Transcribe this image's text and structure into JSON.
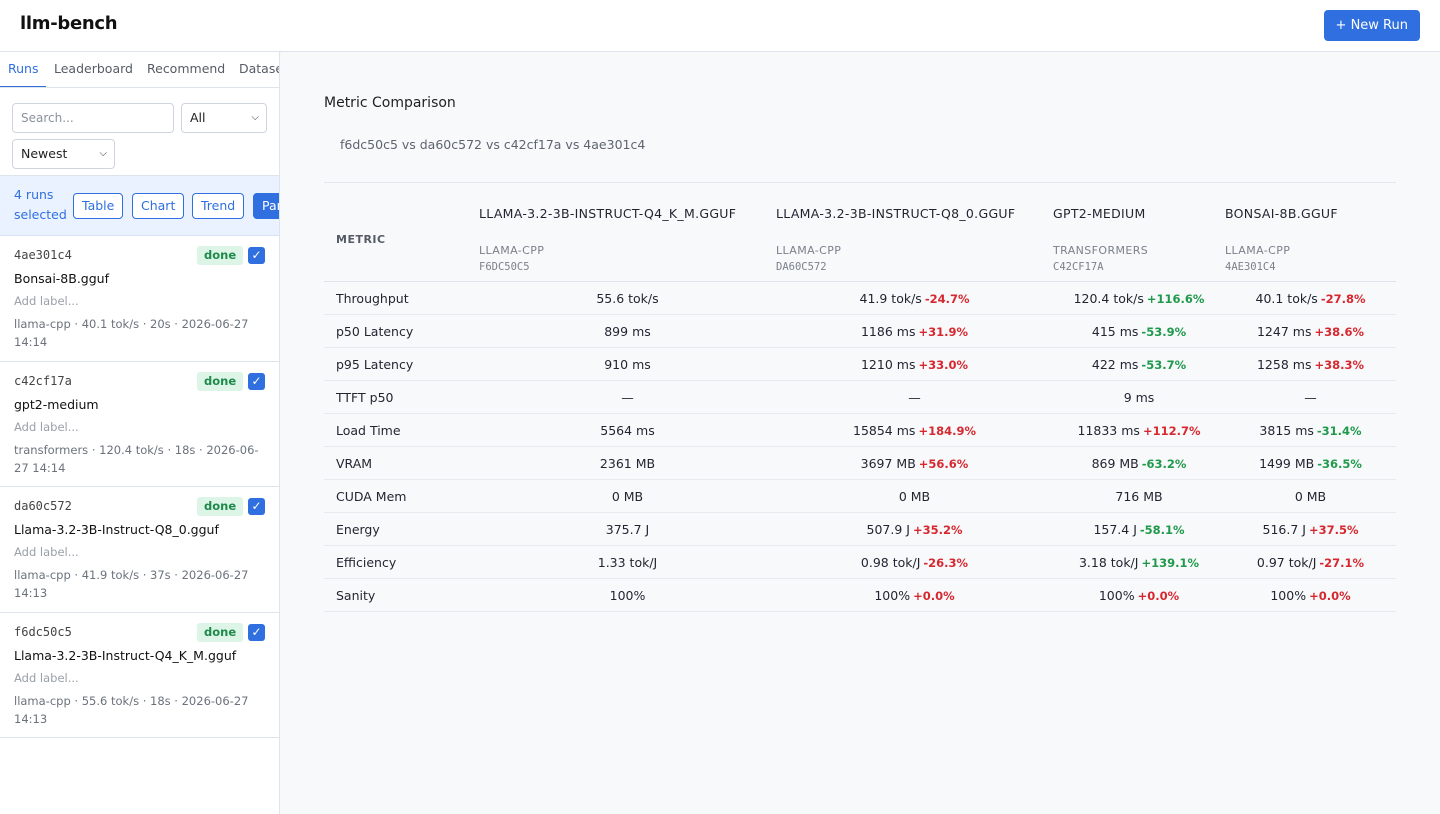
{
  "app": {
    "title": "llm-bench",
    "new_run_label": "+ New Run"
  },
  "sidebar": {
    "tabs": [
      {
        "label": "Runs",
        "active": true
      },
      {
        "label": "Leaderboard",
        "active": false
      },
      {
        "label": "Recommend",
        "active": false
      },
      {
        "label": "Datasets",
        "active": false
      }
    ],
    "search_placeholder": "Search...",
    "status_filter": "All",
    "sort": "Newest",
    "selection": {
      "count_text": "4 runs selected",
      "buttons": [
        "Table",
        "Chart",
        "Trend",
        "Pareto"
      ]
    },
    "runs": [
      {
        "id": "4ae301c4",
        "status": "done",
        "checked": true,
        "model": "Bonsai-8B.gguf",
        "label_placeholder": "Add label...",
        "meta": "llama-cpp · 40.1 tok/s · 20s · 2026-06-27 14:14"
      },
      {
        "id": "c42cf17a",
        "status": "done",
        "checked": true,
        "model": "gpt2-medium",
        "label_placeholder": "Add label...",
        "meta": "transformers · 120.4 tok/s · 18s · 2026-06-27 14:14"
      },
      {
        "id": "da60c572",
        "status": "done",
        "checked": true,
        "model": "Llama-3.2-3B-Instruct-Q8_0.gguf",
        "label_placeholder": "Add label...",
        "meta": "llama-cpp · 41.9 tok/s · 37s · 2026-06-27 14:13"
      },
      {
        "id": "f6dc50c5",
        "status": "done",
        "checked": true,
        "model": "Llama-3.2-3B-Instruct-Q4_K_M.gguf",
        "label_placeholder": "Add label...",
        "meta": "llama-cpp · 55.6 tok/s · 18s · 2026-06-27 14:13"
      }
    ]
  },
  "comparison": {
    "title": "Metric Comparison",
    "subtitle": "f6dc50c5 vs da60c572 vs c42cf17a vs 4ae301c4",
    "metric_header": "METRIC",
    "columns": [
      {
        "name": "LLAMA-3.2-3B-INSTRUCT-Q4_K_M.GGUF",
        "backend": "LLAMA-CPP",
        "id": "F6DC50C5"
      },
      {
        "name": "LLAMA-3.2-3B-INSTRUCT-Q8_0.GGUF",
        "backend": "LLAMA-CPP",
        "id": "DA60C572"
      },
      {
        "name": "GPT2-MEDIUM",
        "backend": "TRANSFORMERS",
        "id": "C42CF17A"
      },
      {
        "name": "BONSAI-8B.GGUF",
        "backend": "LLAMA-CPP",
        "id": "4AE301C4"
      }
    ],
    "rows": [
      {
        "metric": "Throughput",
        "cells": [
          {
            "value": "55.6 tok/s",
            "delta": "",
            "good": null
          },
          {
            "value": "41.9 tok/s",
            "delta": "-24.7%",
            "good": false
          },
          {
            "value": "120.4 tok/s",
            "delta": "+116.6%",
            "good": true
          },
          {
            "value": "40.1 tok/s",
            "delta": "-27.8%",
            "good": false
          }
        ]
      },
      {
        "metric": "p50 Latency",
        "cells": [
          {
            "value": "899 ms",
            "delta": "",
            "good": null
          },
          {
            "value": "1186 ms",
            "delta": "+31.9%",
            "good": false
          },
          {
            "value": "415 ms",
            "delta": "-53.9%",
            "good": true
          },
          {
            "value": "1247 ms",
            "delta": "+38.6%",
            "good": false
          }
        ]
      },
      {
        "metric": "p95 Latency",
        "cells": [
          {
            "value": "910 ms",
            "delta": "",
            "good": null
          },
          {
            "value": "1210 ms",
            "delta": "+33.0%",
            "good": false
          },
          {
            "value": "422 ms",
            "delta": "-53.7%",
            "good": true
          },
          {
            "value": "1258 ms",
            "delta": "+38.3%",
            "good": false
          }
        ]
      },
      {
        "metric": "TTFT p50",
        "cells": [
          {
            "value": "—",
            "delta": "",
            "good": null
          },
          {
            "value": "—",
            "delta": "",
            "good": null
          },
          {
            "value": "9 ms",
            "delta": "",
            "good": null
          },
          {
            "value": "—",
            "delta": "",
            "good": null
          }
        ]
      },
      {
        "metric": "Load Time",
        "cells": [
          {
            "value": "5564 ms",
            "delta": "",
            "good": null
          },
          {
            "value": "15854 ms",
            "delta": "+184.9%",
            "good": false
          },
          {
            "value": "11833 ms",
            "delta": "+112.7%",
            "good": false
          },
          {
            "value": "3815 ms",
            "delta": "-31.4%",
            "good": true
          }
        ]
      },
      {
        "metric": "VRAM",
        "cells": [
          {
            "value": "2361 MB",
            "delta": "",
            "good": null
          },
          {
            "value": "3697 MB",
            "delta": "+56.6%",
            "good": false
          },
          {
            "value": "869 MB",
            "delta": "-63.2%",
            "good": true
          },
          {
            "value": "1499 MB",
            "delta": "-36.5%",
            "good": true
          }
        ]
      },
      {
        "metric": "CUDA Mem",
        "cells": [
          {
            "value": "0 MB",
            "delta": "",
            "good": null
          },
          {
            "value": "0 MB",
            "delta": "",
            "good": null
          },
          {
            "value": "716 MB",
            "delta": "",
            "good": null
          },
          {
            "value": "0 MB",
            "delta": "",
            "good": null
          }
        ]
      },
      {
        "metric": "Energy",
        "cells": [
          {
            "value": "375.7 J",
            "delta": "",
            "good": null
          },
          {
            "value": "507.9 J",
            "delta": "+35.2%",
            "good": false
          },
          {
            "value": "157.4 J",
            "delta": "-58.1%",
            "good": true
          },
          {
            "value": "516.7 J",
            "delta": "+37.5%",
            "good": false
          }
        ]
      },
      {
        "metric": "Efficiency",
        "cells": [
          {
            "value": "1.33 tok/J",
            "delta": "",
            "good": null
          },
          {
            "value": "0.98 tok/J",
            "delta": "-26.3%",
            "good": false
          },
          {
            "value": "3.18 tok/J",
            "delta": "+139.1%",
            "good": true
          },
          {
            "value": "0.97 tok/J",
            "delta": "-27.1%",
            "good": false
          }
        ]
      },
      {
        "metric": "Sanity",
        "cells": [
          {
            "value": "100%",
            "delta": "",
            "good": null
          },
          {
            "value": "100%",
            "delta": "+0.0%",
            "good": false
          },
          {
            "value": "100%",
            "delta": "+0.0%",
            "good": false
          },
          {
            "value": "100%",
            "delta": "+0.0%",
            "good": false
          }
        ]
      }
    ]
  }
}
